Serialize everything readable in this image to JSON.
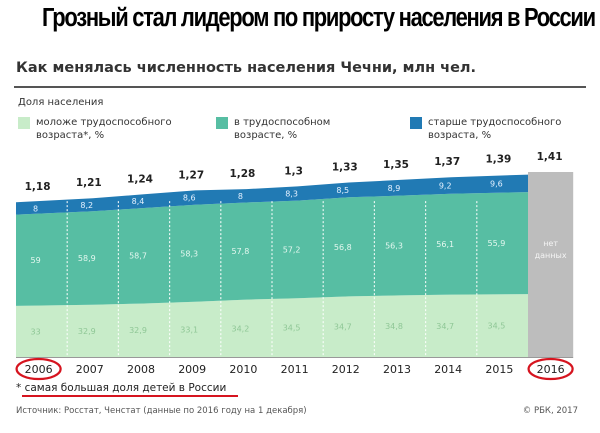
{
  "headline": "Грозный стал лидером по приросту населения в России",
  "footnote": "* самая большая доля детей в России",
  "source": "Источник: Росстат, Ченстат (данные по 2016 году на 1 декабря)",
  "copyright": "© РБК, 2017",
  "colors": {
    "young": "#c8ecc9",
    "working": "#57bea3",
    "old": "#217ab4",
    "nodata": "#bdbdbd",
    "highlight": "#d6141f"
  },
  "chart_data": {
    "type": "area",
    "title": "Как менялась численность населения Чечни, млн чел.",
    "legend_title": "Доля населения",
    "legend": [
      "моложе трудоспособного возраста*, %",
      "в трудоспособном возрасте, %",
      "старше трудоспособного возраста, %"
    ],
    "categories": [
      "2006",
      "2007",
      "2008",
      "2009",
      "2010",
      "2011",
      "2012",
      "2013",
      "2014",
      "2015",
      "2016"
    ],
    "totals": [
      "1,18",
      "1,21",
      "1,24",
      "1,27",
      "1,28",
      "1,3",
      "1,33",
      "1,35",
      "1,37",
      "1,39",
      "1,41"
    ],
    "series": [
      {
        "values": [
          33,
          32.9,
          32.9,
          33.1,
          34.2,
          34.5,
          34.7,
          34.8,
          34.7,
          34.5,
          null
        ],
        "labels": [
          "33",
          "32,9",
          "32,9",
          "33,1",
          "34,2",
          "34,5",
          "34,7",
          "34,8",
          "34,7",
          "34,5",
          ""
        ]
      },
      {
        "values": [
          59,
          58.9,
          58.7,
          58.3,
          57.8,
          57.2,
          56.8,
          56.3,
          56.1,
          55.9,
          null
        ],
        "labels": [
          "59",
          "58,9",
          "58,7",
          "58,3",
          "57,8",
          "57,2",
          "56,8",
          "56,3",
          "56,1",
          "55,9",
          ""
        ]
      },
      {
        "values": [
          8,
          8.2,
          8.4,
          8.6,
          8,
          8.3,
          8.5,
          8.9,
          9.2,
          9.6,
          null
        ],
        "labels": [
          "8",
          "8,2",
          "8,4",
          "8,6",
          "8",
          "8,3",
          "8,5",
          "8,9",
          "9,2",
          "9,6",
          ""
        ]
      }
    ],
    "nodata_label": "нет данных",
    "highlighted": [
      "2006",
      "2016"
    ]
  }
}
